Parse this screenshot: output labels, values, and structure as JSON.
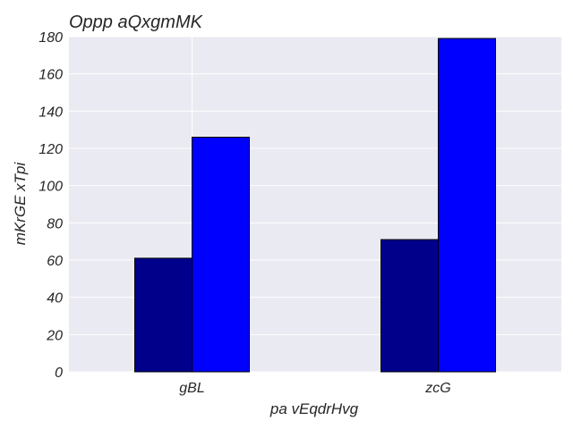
{
  "chart_data": {
    "type": "bar",
    "title": "Oppp aQxgmMK",
    "xlabel": "pa vEqdrHvg",
    "ylabel": "mKrGE xTpi",
    "categories": [
      "gBL",
      "zcG"
    ],
    "series": [
      {
        "values": [
          61,
          71
        ],
        "color": "#00008b"
      },
      {
        "values": [
          126,
          179
        ],
        "color": "#0000ff"
      }
    ],
    "ylim": [
      0,
      180
    ],
    "yticks": [
      0,
      20,
      40,
      60,
      80,
      100,
      120,
      140,
      160,
      180
    ],
    "grid": true,
    "background": "#eaeaf2",
    "grid_color": "#ffffff"
  }
}
